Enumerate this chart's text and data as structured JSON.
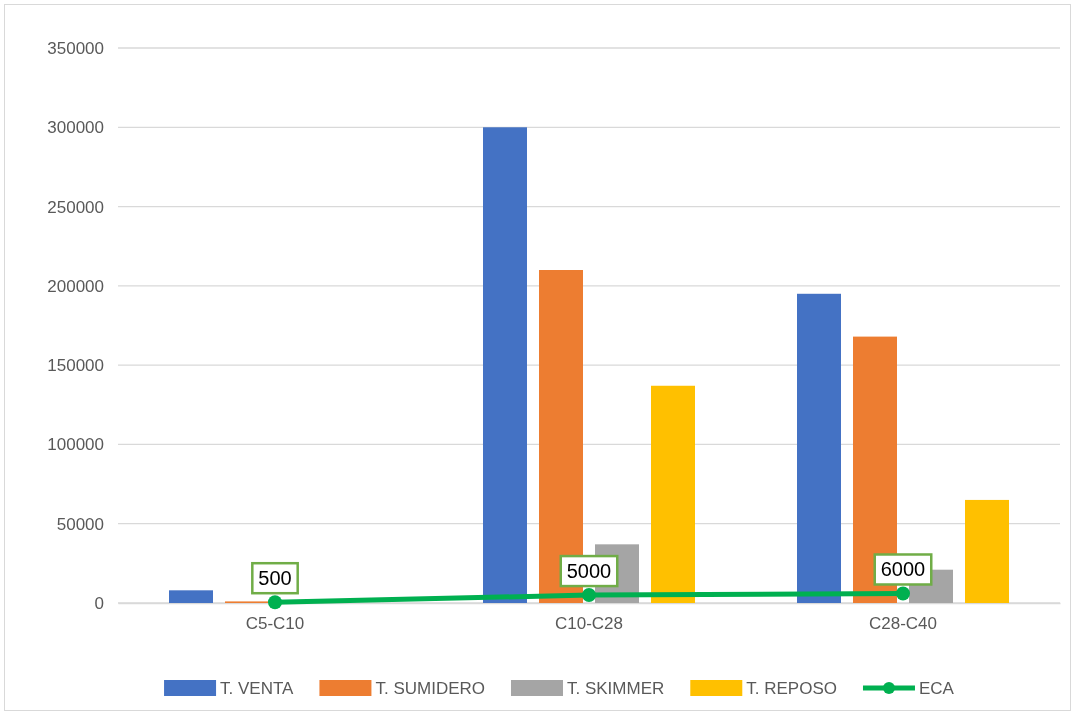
{
  "chart_data": {
    "type": "bar",
    "categories": [
      "C5-C10",
      "C10-C28",
      "C28-C40"
    ],
    "series": [
      {
        "name": "T. VENTA",
        "color": "#4472c4",
        "values": [
          8000,
          300000,
          195000
        ]
      },
      {
        "name": "T. SUMIDERO",
        "color": "#ed7d31",
        "values": [
          1000,
          210000,
          168000
        ]
      },
      {
        "name": "T. SKIMMER",
        "color": "#a5a5a5",
        "values": [
          null,
          37000,
          21000
        ]
      },
      {
        "name": "T. REPOSO",
        "color": "#ffc000",
        "values": [
          0,
          137000,
          65000
        ]
      },
      {
        "name": "ECA",
        "type": "line",
        "color": "#00b050",
        "marker": "circle",
        "values": [
          500,
          5000,
          6000
        ],
        "value_labels": [
          "500",
          "5000",
          "6000"
        ]
      }
    ],
    "ylim": [
      0,
      350000
    ],
    "yticks": [
      0,
      50000,
      100000,
      150000,
      200000,
      250000,
      300000,
      350000
    ],
    "grid": "y",
    "legend": "bottom"
  }
}
